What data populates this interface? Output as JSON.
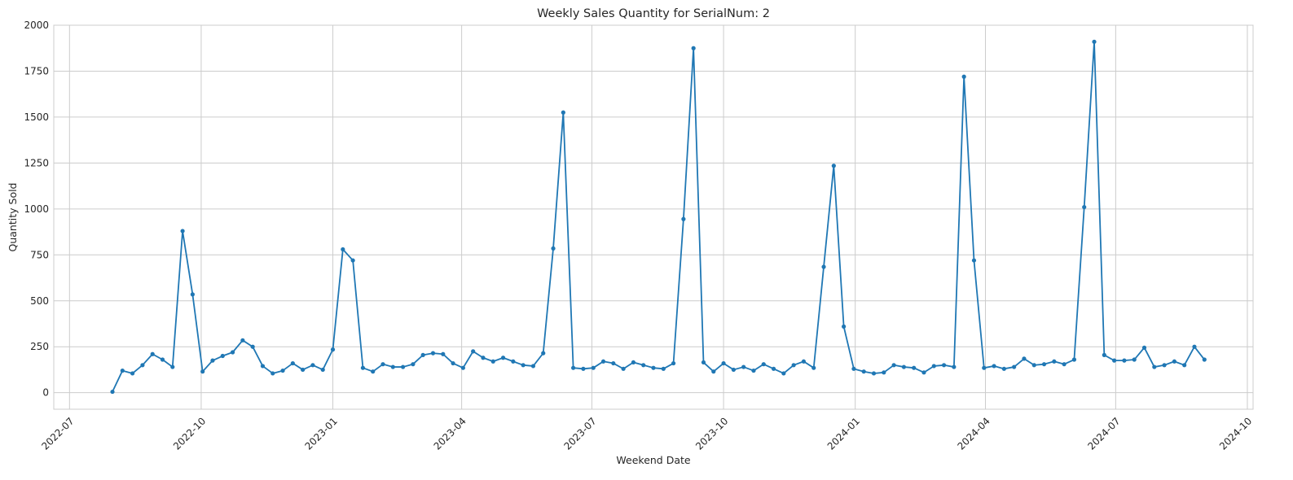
{
  "chart_data": {
    "type": "line",
    "title": "Weekly Sales Quantity for SerialNum: 2",
    "xlabel": "Weekend Date",
    "ylabel": "Quantity Sold",
    "ylim": [
      -90,
      2000
    ],
    "xlim": [
      "2022-06-20",
      "2024-10-05"
    ],
    "grid": true,
    "yticks": [
      0,
      250,
      500,
      750,
      1000,
      1250,
      1500,
      1750,
      2000
    ],
    "ytick_labels": [
      "0",
      "250",
      "500",
      "750",
      "1000",
      "1250",
      "1500",
      "1750",
      "2000"
    ],
    "xticks": [
      "2022-07-01",
      "2022-10-01",
      "2023-01-01",
      "2023-04-01",
      "2023-07-01",
      "2023-10-01",
      "2024-01-01",
      "2024-04-01",
      "2024-07-01",
      "2024-10-01"
    ],
    "xtick_labels": [
      "2022-07",
      "2022-10",
      "2023-01",
      "2023-04",
      "2023-07",
      "2023-10",
      "2024-01",
      "2024-04",
      "2024-07",
      "2024-10"
    ],
    "series": [
      {
        "color": "#1f77b4",
        "x": [
          "2022-07-31",
          "2022-08-07",
          "2022-08-14",
          "2022-08-21",
          "2022-08-28",
          "2022-09-04",
          "2022-09-11",
          "2022-09-18",
          "2022-09-25",
          "2022-10-02",
          "2022-10-09",
          "2022-10-16",
          "2022-10-23",
          "2022-10-30",
          "2022-11-06",
          "2022-11-13",
          "2022-11-20",
          "2022-11-27",
          "2022-12-04",
          "2022-12-11",
          "2022-12-18",
          "2022-12-25",
          "2023-01-01",
          "2023-01-08",
          "2023-01-15",
          "2023-01-22",
          "2023-01-29",
          "2023-02-05",
          "2023-02-12",
          "2023-02-19",
          "2023-02-26",
          "2023-03-05",
          "2023-03-12",
          "2023-03-19",
          "2023-03-26",
          "2023-04-02",
          "2023-04-09",
          "2023-04-16",
          "2023-04-23",
          "2023-04-30",
          "2023-05-07",
          "2023-05-14",
          "2023-05-21",
          "2023-05-28",
          "2023-06-04",
          "2023-06-11",
          "2023-06-18",
          "2023-06-25",
          "2023-07-02",
          "2023-07-09",
          "2023-07-16",
          "2023-07-23",
          "2023-07-30",
          "2023-08-06",
          "2023-08-13",
          "2023-08-20",
          "2023-08-27",
          "2023-09-03",
          "2023-09-10",
          "2023-09-17",
          "2023-09-24",
          "2023-10-01",
          "2023-10-08",
          "2023-10-15",
          "2023-10-22",
          "2023-10-29",
          "2023-11-05",
          "2023-11-12",
          "2023-11-19",
          "2023-11-26",
          "2023-12-03",
          "2023-12-10",
          "2023-12-17",
          "2023-12-24",
          "2023-12-31",
          "2024-01-07",
          "2024-01-14",
          "2024-01-21",
          "2024-01-28",
          "2024-02-04",
          "2024-02-11",
          "2024-02-18",
          "2024-02-25",
          "2024-03-03",
          "2024-03-10",
          "2024-03-17",
          "2024-03-24",
          "2024-03-31",
          "2024-04-07",
          "2024-04-14",
          "2024-04-21",
          "2024-04-28",
          "2024-05-05",
          "2024-05-12",
          "2024-05-19",
          "2024-05-26",
          "2024-06-02",
          "2024-06-09",
          "2024-06-16",
          "2024-06-23",
          "2024-06-30",
          "2024-07-07",
          "2024-07-14",
          "2024-07-21",
          "2024-07-28",
          "2024-08-04",
          "2024-08-11",
          "2024-08-18",
          "2024-08-25",
          "2024-09-01"
        ],
        "values": [
          5,
          120,
          105,
          150,
          210,
          180,
          140,
          880,
          535,
          115,
          175,
          200,
          220,
          285,
          250,
          145,
          105,
          120,
          160,
          125,
          150,
          125,
          235,
          780,
          720,
          135,
          115,
          155,
          140,
          140,
          155,
          205,
          215,
          210,
          160,
          135,
          225,
          190,
          170,
          190,
          170,
          150,
          145,
          215,
          785,
          1525,
          135,
          130,
          135,
          170,
          160,
          130,
          165,
          150,
          135,
          130,
          160,
          945,
          1875,
          165,
          115,
          160,
          125,
          140,
          120,
          155,
          130,
          105,
          150,
          170,
          135,
          685,
          1235,
          360,
          130,
          115,
          105,
          110,
          150,
          140,
          135,
          110,
          145,
          150,
          140,
          1720,
          720,
          135,
          145,
          130,
          140,
          185,
          150,
          155,
          170,
          155,
          180,
          1010,
          1910,
          205,
          175,
          175,
          180,
          245,
          140,
          150,
          170,
          150,
          250,
          180
        ]
      }
    ]
  }
}
